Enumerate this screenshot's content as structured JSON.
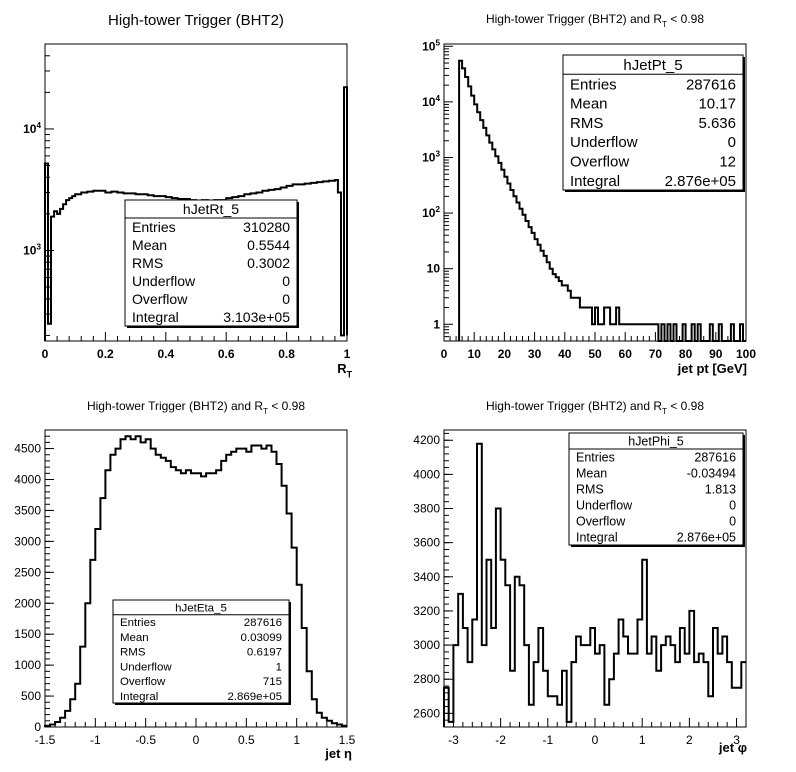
{
  "chart_data": [
    {
      "type": "histogram",
      "title": "High-tower Trigger (BHT2)",
      "xlabel": "R_T",
      "ylabel": "",
      "xlim": [
        0,
        1
      ],
      "ylim": [
        180,
        50000
      ],
      "y_scale": "log",
      "xticks": [
        "0",
        "0.2",
        "0.4",
        "0.6",
        "0.8",
        "1"
      ],
      "yticks": [
        "10^3",
        "10^4"
      ],
      "grid": false,
      "stats_box": {
        "name": "hJetRt_5",
        "rows": [
          [
            "Entries",
            "310280"
          ],
          [
            "Mean",
            "0.5544"
          ],
          [
            "RMS",
            "0.3002"
          ],
          [
            "Underflow",
            "0"
          ],
          [
            "Overflow",
            "0"
          ],
          [
            "Integral",
            "3.103e+05"
          ]
        ]
      },
      "x": [
        0.0,
        0.01,
        0.02,
        0.03,
        0.04,
        0.05,
        0.06,
        0.07,
        0.08,
        0.09,
        0.1,
        0.12,
        0.14,
        0.16,
        0.18,
        0.2,
        0.22,
        0.24,
        0.26,
        0.28,
        0.3,
        0.32,
        0.34,
        0.36,
        0.38,
        0.4,
        0.42,
        0.44,
        0.46,
        0.48,
        0.5,
        0.52,
        0.54,
        0.56,
        0.58,
        0.6,
        0.62,
        0.64,
        0.66,
        0.68,
        0.7,
        0.72,
        0.74,
        0.76,
        0.78,
        0.8,
        0.82,
        0.84,
        0.86,
        0.88,
        0.9,
        0.92,
        0.94,
        0.96,
        0.97,
        0.98,
        0.99,
        1.0
      ],
      "values": [
        5200,
        250,
        1900,
        2100,
        2000,
        2200,
        2400,
        2600,
        2700,
        2800,
        2900,
        3000,
        3050,
        3100,
        3100,
        3000,
        3050,
        3000,
        2950,
        2950,
        2900,
        2900,
        2850,
        2800,
        2800,
        2750,
        2700,
        2650,
        2650,
        2600,
        2500,
        2600,
        2550,
        2600,
        2600,
        2700,
        2750,
        2800,
        2900,
        2950,
        3000,
        3100,
        3150,
        3200,
        3300,
        3400,
        3500,
        3500,
        3550,
        3600,
        3650,
        3700,
        3750,
        3800,
        3000,
        200,
        22000,
        200
      ]
    },
    {
      "type": "histogram",
      "title": "High-tower Trigger (BHT2) and R_T < 0.98",
      "xlabel": "jet pt [GeV]",
      "ylabel": "",
      "xlim": [
        0,
        100
      ],
      "ylim": [
        0.5,
        110000
      ],
      "y_scale": "log",
      "xticks": [
        "0",
        "10",
        "20",
        "30",
        "40",
        "50",
        "60",
        "70",
        "80",
        "90",
        "100"
      ],
      "yticks": [
        "1",
        "10",
        "10^2",
        "10^3",
        "10^4",
        "10^5"
      ],
      "grid": false,
      "stats_box": {
        "name": "hJetPt_5",
        "rows": [
          [
            "Entries",
            "287616"
          ],
          [
            "Mean",
            "10.17"
          ],
          [
            "RMS",
            "5.636"
          ],
          [
            "Underflow",
            "0"
          ],
          [
            "Overflow",
            "12"
          ],
          [
            "Integral",
            "2.876e+05"
          ]
        ]
      },
      "x": [
        5,
        6,
        7,
        8,
        9,
        10,
        11,
        12,
        13,
        14,
        15,
        16,
        17,
        18,
        19,
        20,
        21,
        22,
        23,
        24,
        25,
        26,
        27,
        28,
        29,
        30,
        31,
        32,
        33,
        34,
        35,
        36,
        37,
        38,
        39,
        40,
        41,
        42,
        43,
        44,
        45,
        46,
        47,
        48,
        49,
        50,
        51,
        52,
        53,
        54,
        55,
        56,
        57,
        58,
        59,
        60,
        61,
        62,
        63,
        64,
        65,
        66,
        67,
        68,
        69,
        70,
        71,
        72,
        73,
        74,
        75,
        76,
        77,
        78,
        79,
        80,
        81,
        82,
        83,
        84,
        85,
        86,
        87,
        88,
        89,
        90,
        91,
        92,
        93,
        94,
        95,
        96,
        97,
        98,
        99
      ],
      "values": [
        55000,
        40000,
        28000,
        19000,
        13000,
        9000,
        6500,
        4700,
        3400,
        2500,
        1850,
        1400,
        1050,
        800,
        600,
        450,
        340,
        260,
        200,
        155,
        120,
        93,
        72,
        56,
        44,
        34,
        27,
        21,
        17,
        13,
        10,
        8,
        7,
        6,
        5,
        5,
        4,
        3,
        3,
        3,
        2,
        2,
        2,
        2,
        1,
        2,
        1,
        1,
        2,
        2,
        1,
        1,
        2,
        1,
        1,
        1,
        1,
        1,
        1,
        1,
        1,
        1,
        1,
        1,
        1,
        1,
        0,
        1,
        0,
        1,
        0,
        1,
        0,
        0,
        1,
        0,
        0,
        1,
        0,
        1,
        0,
        0,
        0,
        1,
        0,
        0,
        1,
        0,
        0,
        0,
        1,
        0,
        0,
        1,
        0
      ],
      "x_step": 1
    },
    {
      "type": "histogram",
      "title": "High-tower Trigger (BHT2) and R_T < 0.98",
      "xlabel": "jet η",
      "ylabel": "",
      "xlim": [
        -1.5,
        1.5
      ],
      "ylim": [
        0,
        4800
      ],
      "y_scale": "linear",
      "xticks": [
        "-1.5",
        "-1",
        "-0.5",
        "0",
        "0.5",
        "1",
        "1.5"
      ],
      "yticks": [
        "0",
        "500",
        "1000",
        "1500",
        "2000",
        "2500",
        "3000",
        "3500",
        "4000",
        "4500"
      ],
      "grid": false,
      "stats_box": {
        "name": "hJetEta_5",
        "rows": [
          [
            "Entries",
            "287616"
          ],
          [
            "Mean",
            "0.03099"
          ],
          [
            "RMS",
            "0.6197"
          ],
          [
            "Underflow",
            "1"
          ],
          [
            "Overflow",
            "715"
          ],
          [
            "Integral",
            "2.869e+05"
          ]
        ]
      },
      "x": [
        -1.5,
        -1.45,
        -1.4,
        -1.35,
        -1.3,
        -1.25,
        -1.2,
        -1.15,
        -1.1,
        -1.05,
        -1.0,
        -0.95,
        -0.9,
        -0.85,
        -0.8,
        -0.75,
        -0.7,
        -0.65,
        -0.6,
        -0.55,
        -0.5,
        -0.45,
        -0.4,
        -0.35,
        -0.3,
        -0.25,
        -0.2,
        -0.15,
        -0.1,
        -0.05,
        0.0,
        0.05,
        0.1,
        0.15,
        0.2,
        0.25,
        0.3,
        0.35,
        0.4,
        0.45,
        0.5,
        0.55,
        0.6,
        0.65,
        0.7,
        0.75,
        0.8,
        0.85,
        0.9,
        0.95,
        1.0,
        1.05,
        1.1,
        1.15,
        1.2,
        1.25,
        1.3,
        1.35,
        1.4,
        1.45
      ],
      "values": [
        20,
        40,
        80,
        150,
        260,
        450,
        700,
        1300,
        2000,
        2700,
        3200,
        3700,
        4150,
        4400,
        4500,
        4650,
        4700,
        4650,
        4700,
        4600,
        4650,
        4500,
        4400,
        4350,
        4300,
        4200,
        4150,
        4100,
        4150,
        4100,
        4100,
        4050,
        4100,
        4100,
        4150,
        4300,
        4400,
        4450,
        4500,
        4500,
        4450,
        4550,
        4550,
        4500,
        4550,
        4450,
        4250,
        3900,
        3450,
        2900,
        2300,
        1600,
        900,
        450,
        230,
        150,
        100,
        60,
        40,
        20
      ],
      "x_step": 0.05
    },
    {
      "type": "histogram",
      "title": "High-tower Trigger (BHT2) and R_T < 0.98",
      "xlabel": "jet φ",
      "ylabel": "",
      "xlim": [
        -3.2,
        3.2
      ],
      "ylim": [
        2520,
        4260
      ],
      "y_scale": "linear",
      "xticks": [
        "-3",
        "-2",
        "-1",
        "0",
        "1",
        "2",
        "3"
      ],
      "yticks": [
        "2600",
        "2800",
        "3000",
        "3200",
        "3400",
        "3600",
        "3800",
        "4000",
        "4200"
      ],
      "grid": false,
      "stats_box": {
        "name": "hJetPhi_5",
        "rows": [
          [
            "Entries",
            "287616"
          ],
          [
            "Mean",
            "-0.03494"
          ],
          [
            "RMS",
            "1.813"
          ],
          [
            "Underflow",
            "0"
          ],
          [
            "Overflow",
            "0"
          ],
          [
            "Integral",
            "2.876e+05"
          ]
        ]
      },
      "x": [
        -3.2,
        -3.1,
        -3.0,
        -2.9,
        -2.8,
        -2.7,
        -2.6,
        -2.5,
        -2.4,
        -2.3,
        -2.2,
        -2.1,
        -2.0,
        -1.9,
        -1.8,
        -1.7,
        -1.6,
        -1.5,
        -1.4,
        -1.3,
        -1.2,
        -1.1,
        -1.0,
        -0.9,
        -0.8,
        -0.7,
        -0.6,
        -0.5,
        -0.4,
        -0.3,
        -0.2,
        -0.1,
        0.0,
        0.1,
        0.2,
        0.3,
        0.4,
        0.5,
        0.6,
        0.7,
        0.8,
        0.9,
        1.0,
        1.1,
        1.2,
        1.3,
        1.4,
        1.5,
        1.6,
        1.7,
        1.8,
        1.9,
        2.0,
        2.1,
        2.2,
        2.3,
        2.4,
        2.5,
        2.6,
        2.7,
        2.8,
        2.9,
        3.0,
        3.1
      ],
      "values": [
        2750,
        2550,
        3000,
        3300,
        3100,
        2900,
        3150,
        4180,
        3000,
        3500,
        3100,
        3800,
        3500,
        3350,
        2850,
        3400,
        3350,
        3000,
        2650,
        2900,
        3100,
        2850,
        2700,
        2700,
        2650,
        2850,
        2550,
        2900,
        3050,
        3000,
        3000,
        3100,
        2950,
        3000,
        2650,
        2800,
        2950,
        3150,
        3050,
        2950,
        2950,
        3150,
        3500,
        2950,
        3050,
        2850,
        3000,
        3050,
        3000,
        2900,
        3100,
        2950,
        3200,
        2900,
        2950,
        2900,
        2700,
        3100,
        2950,
        3050,
        2900,
        2750,
        2750,
        2900
      ],
      "x_step": 0.1
    }
  ]
}
